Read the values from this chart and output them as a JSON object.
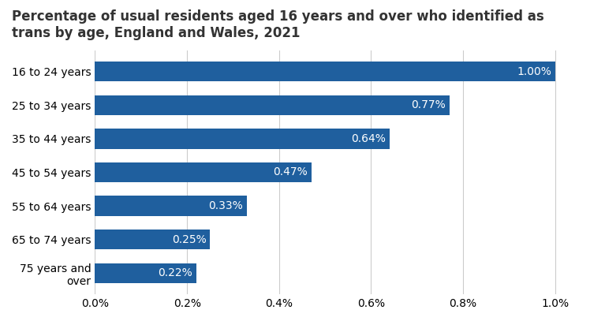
{
  "title": "Percentage of usual residents aged 16 years and over who identified as\ntrans by age, England and Wales, 2021",
  "categories": [
    "16 to 24 years",
    "25 to 34 years",
    "35 to 44 years",
    "45 to 54 years",
    "55 to 64 years",
    "65 to 74 years",
    "75 years and\nover"
  ],
  "values": [
    1.0,
    0.77,
    0.64,
    0.47,
    0.33,
    0.25,
    0.22
  ],
  "bar_color": "#1F5F9E",
  "label_color": "#ffffff",
  "background_color": "#ffffff",
  "xlim": [
    0,
    1.05
  ],
  "xticks": [
    0.0,
    0.2,
    0.4,
    0.6,
    0.8,
    1.0
  ],
  "xtick_labels": [
    "0.0%",
    "0.2%",
    "0.4%",
    "0.6%",
    "0.8%",
    "1.0%"
  ],
  "title_fontsize": 12,
  "label_fontsize": 10,
  "tick_fontsize": 10,
  "grid_color": "#cccccc"
}
